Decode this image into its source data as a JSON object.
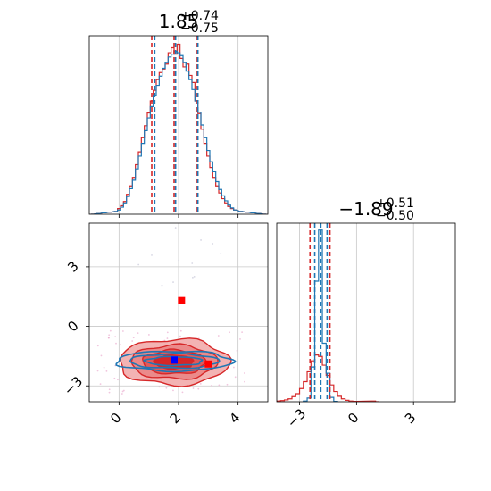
{
  "chart_data": [
    {
      "type": "histogram",
      "panel": "marginal-x",
      "title": {
        "median": "1.85",
        "plus": "+0.74",
        "minus": "−0.75"
      },
      "xlim": [
        -1,
        5
      ],
      "grid": true,
      "bin_width": 0.1,
      "series": [
        {
          "name": "",
          "color": "#d62728",
          "quantile_lines": [
            1.1,
            1.85,
            2.6
          ],
          "bins": [
            {
              "x": -0.9,
              "count": 0
            },
            {
              "x": -0.7,
              "count": 1
            },
            {
              "x": -0.5,
              "count": 2
            },
            {
              "x": -0.3,
              "count": 3
            },
            {
              "x": -0.1,
              "count": 4
            },
            {
              "x": 0.0,
              "count": 8
            },
            {
              "x": 0.1,
              "count": 12
            },
            {
              "x": 0.2,
              "count": 18
            },
            {
              "x": 0.3,
              "count": 28
            },
            {
              "x": 0.4,
              "count": 40
            },
            {
              "x": 0.5,
              "count": 52
            },
            {
              "x": 0.6,
              "count": 70
            },
            {
              "x": 0.7,
              "count": 88
            },
            {
              "x": 0.8,
              "count": 108
            },
            {
              "x": 0.9,
              "count": 125
            },
            {
              "x": 1.0,
              "count": 143
            },
            {
              "x": 1.1,
              "count": 160
            },
            {
              "x": 1.2,
              "count": 175
            },
            {
              "x": 1.3,
              "count": 190
            },
            {
              "x": 1.4,
              "count": 200
            },
            {
              "x": 1.5,
              "count": 205
            },
            {
              "x": 1.6,
              "count": 212
            },
            {
              "x": 1.7,
              "count": 228
            },
            {
              "x": 1.8,
              "count": 235
            },
            {
              "x": 1.9,
              "count": 226
            },
            {
              "x": 2.0,
              "count": 240
            },
            {
              "x": 2.1,
              "count": 220
            },
            {
              "x": 2.2,
              "count": 208
            },
            {
              "x": 2.3,
              "count": 212
            },
            {
              "x": 2.4,
              "count": 196
            },
            {
              "x": 2.5,
              "count": 186
            },
            {
              "x": 2.6,
              "count": 160
            },
            {
              "x": 2.7,
              "count": 142
            },
            {
              "x": 2.8,
              "count": 120
            },
            {
              "x": 2.9,
              "count": 100
            },
            {
              "x": 3.0,
              "count": 82
            },
            {
              "x": 3.1,
              "count": 66
            },
            {
              "x": 3.2,
              "count": 52
            },
            {
              "x": 3.3,
              "count": 40
            },
            {
              "x": 3.4,
              "count": 30
            },
            {
              "x": 3.5,
              "count": 22
            },
            {
              "x": 3.6,
              "count": 16
            },
            {
              "x": 3.7,
              "count": 11
            },
            {
              "x": 3.8,
              "count": 8
            },
            {
              "x": 3.9,
              "count": 6
            },
            {
              "x": 4.1,
              "count": 4
            },
            {
              "x": 4.3,
              "count": 3
            },
            {
              "x": 4.5,
              "count": 2
            },
            {
              "x": 4.7,
              "count": 1
            },
            {
              "x": 4.9,
              "count": 0
            }
          ]
        },
        {
          "name": "",
          "color": "#1f77b4",
          "quantile_lines": [
            1.2,
            1.9,
            2.65
          ],
          "bins": [
            {
              "x": -0.9,
              "count": 0
            },
            {
              "x": -0.7,
              "count": 1
            },
            {
              "x": -0.5,
              "count": 2
            },
            {
              "x": -0.3,
              "count": 3
            },
            {
              "x": -0.1,
              "count": 4
            },
            {
              "x": 0.0,
              "count": 6
            },
            {
              "x": 0.1,
              "count": 10
            },
            {
              "x": 0.2,
              "count": 16
            },
            {
              "x": 0.3,
              "count": 25
            },
            {
              "x": 0.4,
              "count": 36
            },
            {
              "x": 0.5,
              "count": 48
            },
            {
              "x": 0.6,
              "count": 64
            },
            {
              "x": 0.7,
              "count": 82
            },
            {
              "x": 0.8,
              "count": 100
            },
            {
              "x": 0.9,
              "count": 118
            },
            {
              "x": 1.0,
              "count": 136
            },
            {
              "x": 1.1,
              "count": 152
            },
            {
              "x": 1.2,
              "count": 168
            },
            {
              "x": 1.3,
              "count": 182
            },
            {
              "x": 1.4,
              "count": 195
            },
            {
              "x": 1.5,
              "count": 206
            },
            {
              "x": 1.6,
              "count": 214
            },
            {
              "x": 1.7,
              "count": 222
            },
            {
              "x": 1.8,
              "count": 226
            },
            {
              "x": 1.9,
              "count": 230
            },
            {
              "x": 2.0,
              "count": 228
            },
            {
              "x": 2.1,
              "count": 224
            },
            {
              "x": 2.2,
              "count": 214
            },
            {
              "x": 2.3,
              "count": 202
            },
            {
              "x": 2.4,
              "count": 190
            },
            {
              "x": 2.5,
              "count": 176
            },
            {
              "x": 2.6,
              "count": 160
            },
            {
              "x": 2.7,
              "count": 144
            },
            {
              "x": 2.8,
              "count": 126
            },
            {
              "x": 2.9,
              "count": 108
            },
            {
              "x": 3.0,
              "count": 90
            },
            {
              "x": 3.1,
              "count": 74
            },
            {
              "x": 3.2,
              "count": 60
            },
            {
              "x": 3.3,
              "count": 46
            },
            {
              "x": 3.4,
              "count": 35
            },
            {
              "x": 3.5,
              "count": 26
            },
            {
              "x": 3.6,
              "count": 19
            },
            {
              "x": 3.7,
              "count": 13
            },
            {
              "x": 3.8,
              "count": 9
            },
            {
              "x": 3.9,
              "count": 6
            },
            {
              "x": 4.1,
              "count": 4
            },
            {
              "x": 4.3,
              "count": 3
            },
            {
              "x": 4.5,
              "count": 2
            },
            {
              "x": 4.7,
              "count": 1
            },
            {
              "x": 4.9,
              "count": 0
            }
          ]
        }
      ]
    },
    {
      "type": "contour",
      "panel": "joint",
      "xlim": [
        -1,
        5
      ],
      "ylim": [
        -3.8,
        5.2
      ],
      "grid": true,
      "x_ticks": [
        0,
        2,
        4
      ],
      "x_tick_labels": [
        "0",
        "2",
        "4"
      ],
      "y_ticks": [
        -3,
        0,
        3
      ],
      "y_tick_labels": [
        "−3",
        "0",
        "3"
      ],
      "series": [
        {
          "name": "",
          "color": "#d62728",
          "center": [
            1.85,
            -1.8
          ],
          "contour_levels": [
            {
              "rx": 1.85,
              "ry": 1.15,
              "fill": "#f3b3b3"
            },
            {
              "rx": 1.45,
              "ry": 0.85,
              "fill": "#eb8a8a"
            },
            {
              "rx": 1.05,
              "ry": 0.6,
              "fill": "#e05a5a"
            },
            {
              "rx": 0.65,
              "ry": 0.35,
              "fill": "#d62728"
            }
          ],
          "markers": [
            {
              "x": 2.1,
              "y": 1.3
            },
            {
              "x": 3.0,
              "y": -1.9
            }
          ]
        },
        {
          "name": "",
          "color": "#1f77b4",
          "center": [
            1.85,
            -1.75
          ],
          "contour_levels": [
            {
              "rx": 1.95,
              "ry": 0.5
            },
            {
              "rx": 1.5,
              "ry": 0.36
            },
            {
              "rx": 0.95,
              "ry": 0.22
            }
          ],
          "markers": [
            {
              "x": 1.85,
              "y": -1.7
            }
          ]
        }
      ]
    },
    {
      "type": "histogram",
      "panel": "marginal-y",
      "title": {
        "median": "−1.89",
        "plus": "+0.51",
        "minus": "−0.50"
      },
      "xlim": [
        -4.2,
        5.2
      ],
      "grid": true,
      "x_ticks": [
        -3,
        0,
        3
      ],
      "x_tick_labels": [
        "−3",
        "0",
        "3"
      ],
      "bin_width": 0.2,
      "series": [
        {
          "name": "",
          "color": "#d62728",
          "quantile_lines": [
            -2.45,
            -1.9,
            -1.4
          ],
          "bins": [
            {
              "x": -4.1,
              "count": 2
            },
            {
              "x": -3.9,
              "count": 3
            },
            {
              "x": -3.7,
              "count": 5
            },
            {
              "x": -3.5,
              "count": 8
            },
            {
              "x": -3.3,
              "count": 14
            },
            {
              "x": -3.1,
              "count": 22
            },
            {
              "x": -2.9,
              "count": 36
            },
            {
              "x": -2.7,
              "count": 55
            },
            {
              "x": -2.5,
              "count": 82
            },
            {
              "x": -2.3,
              "count": 112
            },
            {
              "x": -2.1,
              "count": 128
            },
            {
              "x": -1.9,
              "count": 124
            },
            {
              "x": -1.7,
              "count": 100
            },
            {
              "x": -1.5,
              "count": 72
            },
            {
              "x": -1.3,
              "count": 46
            },
            {
              "x": -1.1,
              "count": 28
            },
            {
              "x": -0.9,
              "count": 15
            },
            {
              "x": -0.7,
              "count": 8
            },
            {
              "x": -0.5,
              "count": 4
            },
            {
              "x": -0.3,
              "count": 2
            },
            {
              "x": -0.1,
              "count": 1
            },
            {
              "x": 0.9,
              "count": 2
            },
            {
              "x": 1.1,
              "count": 0
            }
          ]
        },
        {
          "name": "",
          "color": "#1f77b4",
          "quantile_lines": [
            -2.2,
            -1.88,
            -1.55
          ],
          "bins": [
            {
              "x": -2.7,
              "count": 2
            },
            {
              "x": -2.5,
              "count": 10
            },
            {
              "x": -2.3,
              "count": 95
            },
            {
              "x": -2.1,
              "count": 330
            },
            {
              "x": -1.9,
              "count": 470
            },
            {
              "x": -1.7,
              "count": 160
            },
            {
              "x": -1.5,
              "count": 78
            },
            {
              "x": -1.3,
              "count": 12
            },
            {
              "x": -1.1,
              "count": 1
            }
          ]
        }
      ]
    }
  ]
}
